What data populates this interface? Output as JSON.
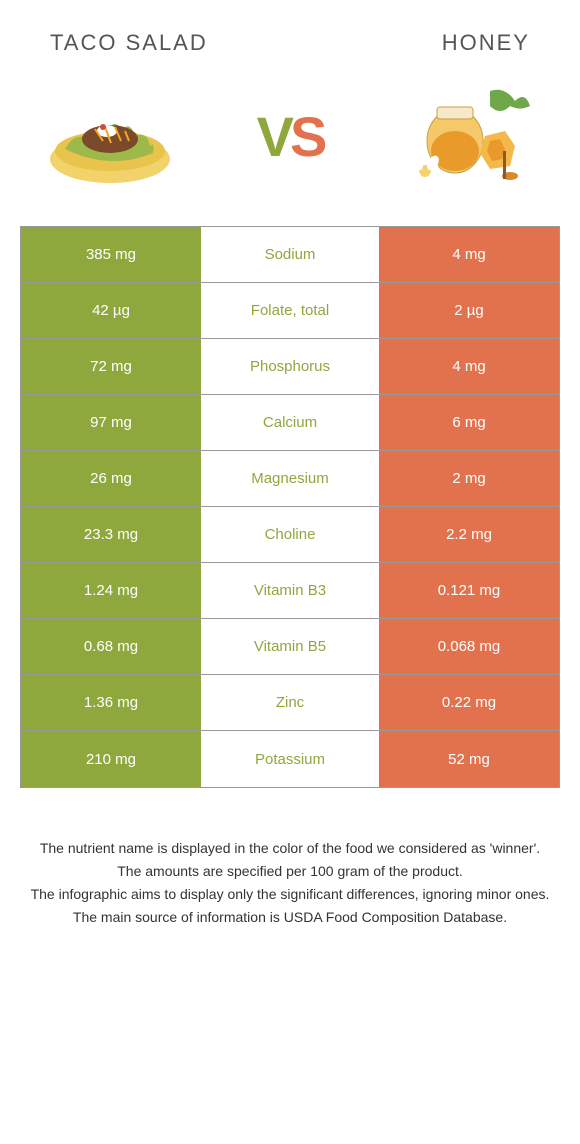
{
  "header": {
    "left_title": "TACO SALAD",
    "right_title": "HONEY"
  },
  "vs": {
    "v": "V",
    "s": "S"
  },
  "colors": {
    "left": "#8fa83e",
    "right": "#e2724e",
    "winner_left_text": "#8fa83e",
    "winner_right_text": "#e2724e"
  },
  "rows": [
    {
      "left": "385 mg",
      "label": "Sodium",
      "right": "4 mg",
      "winner": "left"
    },
    {
      "left": "42 µg",
      "label": "Folate, total",
      "right": "2 µg",
      "winner": "left"
    },
    {
      "left": "72 mg",
      "label": "Phosphorus",
      "right": "4 mg",
      "winner": "left"
    },
    {
      "left": "97 mg",
      "label": "Calcium",
      "right": "6 mg",
      "winner": "left"
    },
    {
      "left": "26 mg",
      "label": "Magnesium",
      "right": "2 mg",
      "winner": "left"
    },
    {
      "left": "23.3 mg",
      "label": "Choline",
      "right": "2.2 mg",
      "winner": "left"
    },
    {
      "left": "1.24 mg",
      "label": "Vitamin B3",
      "right": "0.121 mg",
      "winner": "left"
    },
    {
      "left": "0.68 mg",
      "label": "Vitamin B5",
      "right": "0.068 mg",
      "winner": "left"
    },
    {
      "left": "1.36 mg",
      "label": "Zinc",
      "right": "0.22 mg",
      "winner": "left"
    },
    {
      "left": "210 mg",
      "label": "Potassium",
      "right": "52 mg",
      "winner": "left"
    }
  ],
  "footer": {
    "line1": "The nutrient name is displayed in the color of the food we considered as 'winner'.",
    "line2": "The amounts are specified per 100 gram of the product.",
    "line3": "The infographic aims to display only the significant differences, ignoring minor ones.",
    "line4": "The main source of information is USDA Food Composition Database."
  }
}
